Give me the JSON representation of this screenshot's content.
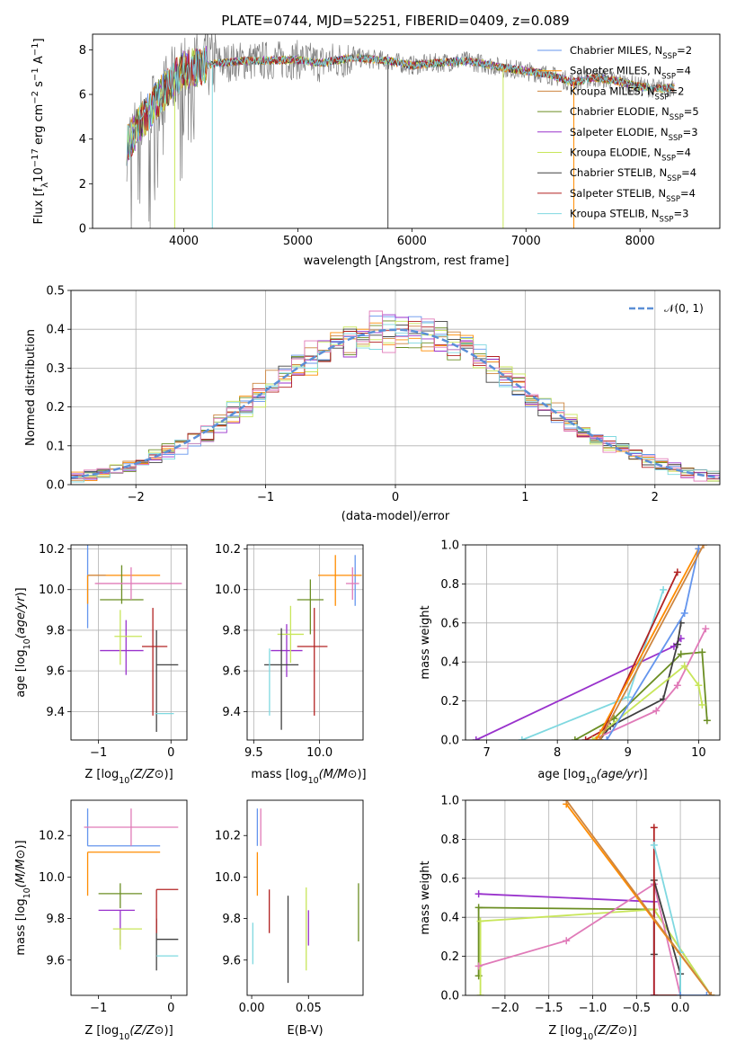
{
  "title": "PLATE=0744, MJD=52251, FIBERID=0409, z=0.089",
  "colors": {
    "chabrier_miles": "#6495ed",
    "salpeter_miles": "#ff8c00",
    "kroupa_miles": "#cd853f",
    "chabrier_elodie": "#6b8e23",
    "salpeter_elodie": "#9932cc",
    "kroupa_elodie": "#c8e65a",
    "chabrier_stelib": "#404040",
    "salpeter_stelib": "#b22222",
    "kroupa_stelib": "#7fd8e0",
    "pink": "#e07ab8",
    "grid": "#b0b0b0",
    "normal": "#5b8fd6"
  },
  "chart_data": [
    {
      "id": "spectrum",
      "type": "line",
      "xlabel": "wavelength [Angstrom, rest frame]",
      "ylabel": "Flux [f$_\\lambda$10$^{-17}$ erg cm$^{-2}$ s$^{-1}$ A$^{-1}$]",
      "xlim": [
        3200,
        8700
      ],
      "ylim": [
        0,
        8.7
      ],
      "xticks": [
        4000,
        5000,
        6000,
        7000,
        8000
      ],
      "yticks": [
        0,
        2,
        4,
        6,
        8
      ],
      "grid": false,
      "legend_position": "right",
      "legend": [
        {
          "base": "Chabrier MILES, N",
          "n": "2",
          "color": "chabrier_miles"
        },
        {
          "base": "Salpeter MILES, N",
          "n": "4",
          "color": "salpeter_miles"
        },
        {
          "base": "Kroupa MILES, N",
          "n": "2",
          "color": "kroupa_miles"
        },
        {
          "base": "Chabrier ELODIE, N",
          "n": "5",
          "color": "chabrier_elodie"
        },
        {
          "base": "Salpeter ELODIE, N",
          "n": "3",
          "color": "salpeter_elodie"
        },
        {
          "base": "Kroupa ELODIE, N",
          "n": "4",
          "color": "kroupa_elodie"
        },
        {
          "base": "Chabrier STELIB, N",
          "n": "4",
          "color": "chabrier_stelib"
        },
        {
          "base": "Salpeter STELIB, N",
          "n": "4",
          "color": "salpeter_stelib"
        },
        {
          "base": "Kroupa STELIB, N",
          "n": "3",
          "color": "kroupa_stelib"
        }
      ],
      "legend_sub": "SSP",
      "continuum": {
        "x": [
          3500,
          3600,
          3700,
          3800,
          3900,
          4000,
          4100,
          4300,
          4500,
          5000,
          5200,
          5500,
          5800,
          6000,
          6300,
          6500,
          6800,
          7000,
          7200,
          7400,
          7600,
          7800,
          8000,
          8200,
          8300
        ],
        "y": [
          3.7,
          4.6,
          5.3,
          6.0,
          6.6,
          7.1,
          7.2,
          7.4,
          7.5,
          7.55,
          7.4,
          7.65,
          7.5,
          7.3,
          7.45,
          7.5,
          7.2,
          7.05,
          6.9,
          6.55,
          6.75,
          6.6,
          6.35,
          6.25,
          6.35
        ]
      },
      "spikes": [
        {
          "x": 3920,
          "y": 0,
          "color": "kroupa_elodie"
        },
        {
          "x": 4250,
          "y": 0,
          "color": "kroupa_stelib"
        },
        {
          "x": 5790,
          "y": 0,
          "color": "chabrier_stelib"
        },
        {
          "x": 6800,
          "y": 0,
          "color": "kroupa_elodie"
        },
        {
          "x": 7420,
          "y": 0,
          "color": "salpeter_miles"
        }
      ]
    },
    {
      "id": "residuals",
      "type": "step",
      "xlabel": "(data-model)/error",
      "ylabel": "Normed distribution",
      "xlim": [
        -2.5,
        2.5
      ],
      "ylim": [
        0,
        0.5
      ],
      "xticks": [
        -2,
        -1,
        0,
        1,
        2
      ],
      "yticks": [
        0.0,
        0.1,
        0.2,
        0.3,
        0.4,
        0.5
      ],
      "grid": true,
      "legend": "𝒩(0, 1)",
      "legend_position": "top-right",
      "bin_width": 0.1
    },
    {
      "id": "age_vs_Z",
      "type": "errorbar",
      "xlabel": "Z [log",
      "ylabel": "age  [log",
      "xlim": [
        -1.38,
        0.22
      ],
      "ylim": [
        9.26,
        10.22
      ],
      "xticks": [
        -1,
        0
      ],
      "yticks": [
        9.4,
        9.6,
        9.8,
        10.0,
        10.2
      ],
      "grid": true,
      "points": [
        {
          "x": -1.15,
          "y": 10.07,
          "xe": [
            0.0,
            0.0
          ],
          "ye": [
            0.26,
            0.26
          ],
          "c": "chabrier_miles"
        },
        {
          "x": -1.15,
          "y": 10.07,
          "xe": [
            0.0,
            1.0
          ],
          "ye": [
            0.14,
            0.0
          ],
          "c": "salpeter_miles"
        },
        {
          "x": -0.9,
          "y": 10.07,
          "xe": [
            0.24,
            0.0
          ],
          "ye": [
            0.0,
            0.0
          ],
          "c": "kroupa_miles"
        },
        {
          "x": -0.68,
          "y": 9.95,
          "xe": [
            0.3,
            0.3
          ],
          "ye": [
            0.02,
            0.17
          ],
          "c": "chabrier_elodie"
        },
        {
          "x": -0.62,
          "y": 9.7,
          "xe": [
            0.36,
            0.24
          ],
          "ye": [
            0.12,
            0.15
          ],
          "c": "salpeter_elodie"
        },
        {
          "x": -0.7,
          "y": 9.77,
          "xe": [
            0.08,
            0.3
          ],
          "ye": [
            0.14,
            0.13
          ],
          "c": "kroupa_elodie"
        },
        {
          "x": -0.2,
          "y": 9.63,
          "xe": [
            0.0,
            0.3
          ],
          "ye": [
            0.33,
            0.17
          ],
          "c": "chabrier_stelib"
        },
        {
          "x": -0.25,
          "y": 9.72,
          "xe": [
            0.15,
            0.2
          ],
          "ye": [
            0.34,
            0.19
          ],
          "c": "salpeter_stelib"
        },
        {
          "x": -0.1,
          "y": 9.39,
          "xe": [
            0.12,
            0.14
          ],
          "ye": [
            0.0,
            0.0
          ],
          "c": "kroupa_stelib"
        },
        {
          "x": -0.55,
          "y": 10.03,
          "xe": [
            0.0,
            0.0
          ],
          "ye": [
            0.08,
            0.08
          ],
          "c": "pink"
        },
        {
          "x": -0.25,
          "y": 10.03,
          "xe": [
            0.8,
            0.4
          ],
          "ye": [
            0.0,
            0.0
          ],
          "c": "pink"
        }
      ]
    },
    {
      "id": "age_vs_mass",
      "type": "errorbar",
      "xlabel": "mass [log",
      "ylabel": "",
      "xlim": [
        9.45,
        10.33
      ],
      "ylim": [
        9.26,
        10.22
      ],
      "xticks": [
        9.5,
        10.0
      ],
      "yticks": [
        9.4,
        9.6,
        9.8,
        10.0,
        10.2
      ],
      "grid": true,
      "points": [
        {
          "x": 10.27,
          "y": 10.07,
          "xe": [
            0.0,
            0.0
          ],
          "ye": [
            0.15,
            0.1
          ],
          "c": "chabrier_miles"
        },
        {
          "x": 10.12,
          "y": 10.07,
          "xe": [
            0.13,
            0.2
          ],
          "ye": [
            0.15,
            0.1
          ],
          "c": "salpeter_miles"
        },
        {
          "x": 9.93,
          "y": 9.95,
          "xe": [
            0.1,
            0.1
          ],
          "ye": [
            0.17,
            0.1
          ],
          "c": "chabrier_elodie"
        },
        {
          "x": 9.75,
          "y": 9.7,
          "xe": [
            0.12,
            0.12
          ],
          "ye": [
            0.13,
            0.13
          ],
          "c": "salpeter_elodie"
        },
        {
          "x": 9.78,
          "y": 9.78,
          "xe": [
            0.1,
            0.1
          ],
          "ye": [
            0.14,
            0.14
          ],
          "c": "kroupa_elodie"
        },
        {
          "x": 9.71,
          "y": 9.63,
          "xe": [
            0.13,
            0.13
          ],
          "ye": [
            0.32,
            0.18
          ],
          "c": "chabrier_stelib"
        },
        {
          "x": 9.96,
          "y": 9.72,
          "xe": [
            0.13,
            0.1
          ],
          "ye": [
            0.34,
            0.19
          ],
          "c": "salpeter_stelib"
        },
        {
          "x": 9.62,
          "y": 9.38,
          "xe": [
            0.0,
            0.0
          ],
          "ye": [
            0.0,
            0.33
          ],
          "c": "kroupa_stelib"
        },
        {
          "x": 10.25,
          "y": 10.03,
          "xe": [
            0.05,
            0.05
          ],
          "ye": [
            0.08,
            0.08
          ],
          "c": "pink"
        }
      ]
    },
    {
      "id": "massweight_vs_age",
      "type": "line",
      "xlabel": "age  [log",
      "ylabel": "mass weight",
      "xlim": [
        6.7,
        10.3
      ],
      "ylim": [
        0,
        1.0
      ],
      "xticks": [
        7,
        8,
        9,
        10
      ],
      "yticks": [
        0.0,
        0.2,
        0.4,
        0.6,
        0.8,
        1.0
      ],
      "grid": true,
      "series": [
        {
          "c": "salpeter_elodie",
          "x": [
            6.85,
            9.65,
            9.75
          ],
          "y": [
            0.0,
            0.48,
            0.52
          ]
        },
        {
          "c": "kroupa_stelib",
          "x": [
            7.5,
            9.0,
            9.5
          ],
          "y": [
            0.0,
            0.22,
            0.77
          ]
        },
        {
          "c": "chabrier_elodie",
          "x": [
            8.25,
            8.8,
            9.75,
            10.05,
            10.12
          ],
          "y": [
            0.0,
            0.11,
            0.44,
            0.45,
            0.1
          ]
        },
        {
          "c": "chabrier_stelib",
          "x": [
            8.6,
            8.75,
            9.5,
            9.7,
            9.75
          ],
          "y": [
            0.0,
            0.07,
            0.21,
            0.49,
            0.6
          ]
        },
        {
          "c": "salpeter_stelib",
          "x": [
            8.4,
            8.65,
            9.7
          ],
          "y": [
            0.0,
            0.05,
            0.86
          ]
        },
        {
          "c": "pink",
          "x": [
            8.5,
            9.4,
            9.7,
            10.1
          ],
          "y": [
            0.0,
            0.15,
            0.28,
            0.57
          ]
        },
        {
          "c": "kroupa_elodie",
          "x": [
            8.5,
            9.8,
            10.0,
            10.05
          ],
          "y": [
            0.0,
            0.38,
            0.28,
            0.18
          ]
        },
        {
          "c": "salpeter_miles",
          "x": [
            8.55,
            10.0
          ],
          "y": [
            0.0,
            0.98
          ]
        },
        {
          "c": "chabrier_miles",
          "x": [
            8.7,
            9.8,
            10.0
          ],
          "y": [
            0.0,
            0.65,
            0.98
          ]
        },
        {
          "c": "kroupa_miles",
          "x": [
            8.6,
            10.07
          ],
          "y": [
            0.0,
            1.0
          ]
        }
      ]
    },
    {
      "id": "mass_vs_Z",
      "type": "errorbar",
      "xlabel": "Z [log",
      "ylabel": "mass [log",
      "xlim": [
        -1.38,
        0.22
      ],
      "ylim": [
        9.43,
        10.37
      ],
      "xticks": [
        -1,
        0
      ],
      "yticks": [
        9.6,
        9.8,
        10.0,
        10.2
      ],
      "grid": false,
      "points": [
        {
          "x": -1.15,
          "y": 10.15,
          "xe": [
            0.0,
            1.0
          ],
          "ye": [
            0.0,
            0.18
          ],
          "c": "chabrier_miles"
        },
        {
          "x": -1.15,
          "y": 10.12,
          "xe": [
            0.0,
            1.0
          ],
          "ye": [
            0.21,
            0.0
          ],
          "c": "salpeter_miles"
        },
        {
          "x": -0.7,
          "y": 9.92,
          "xe": [
            0.3,
            0.3
          ],
          "ye": [
            0.07,
            0.05
          ],
          "c": "chabrier_elodie"
        },
        {
          "x": -0.7,
          "y": 9.84,
          "xe": [
            0.3,
            0.2
          ],
          "ye": [
            0.17,
            0.0
          ],
          "c": "salpeter_elodie"
        },
        {
          "x": -0.7,
          "y": 9.75,
          "xe": [
            0.1,
            0.3
          ],
          "ye": [
            0.1,
            0.0
          ],
          "c": "kroupa_elodie"
        },
        {
          "x": -0.2,
          "y": 9.7,
          "xe": [
            0.0,
            0.3
          ],
          "ye": [
            0.15,
            0.1
          ],
          "c": "chabrier_stelib"
        },
        {
          "x": -0.2,
          "y": 9.94,
          "xe": [
            0.0,
            0.3
          ],
          "ye": [
            0.21,
            0.0
          ],
          "c": "salpeter_stelib"
        },
        {
          "x": -0.1,
          "y": 9.62,
          "xe": [
            0.1,
            0.2
          ],
          "ye": [
            0.0,
            0.0
          ],
          "c": "kroupa_stelib"
        },
        {
          "x": -0.55,
          "y": 10.24,
          "xe": [
            0.65,
            0.65
          ],
          "ye": [
            0.09,
            0.09
          ],
          "c": "pink"
        }
      ]
    },
    {
      "id": "mass_vs_EBV",
      "type": "errorbar",
      "xlabel": "E(B-V)",
      "ylabel": "",
      "xlim": [
        -0.004,
        0.098
      ],
      "ylim": [
        9.43,
        10.37
      ],
      "xticks": [
        0.0,
        0.05
      ],
      "yticks": [
        9.6,
        9.8,
        10.0,
        10.2
      ],
      "grid": false,
      "points": [
        {
          "x": 0.005,
          "y": 10.15,
          "xe": [
            0,
            0
          ],
          "ye": [
            0.0,
            0.18
          ],
          "c": "chabrier_miles"
        },
        {
          "x": 0.005,
          "y": 10.12,
          "xe": [
            0,
            0
          ],
          "ye": [
            0.21,
            0.0
          ],
          "c": "salpeter_miles"
        },
        {
          "x": 0.008,
          "y": 10.24,
          "xe": [
            0,
            0
          ],
          "ye": [
            0.09,
            0.09
          ],
          "c": "pink"
        },
        {
          "x": 0.0155,
          "y": 9.94,
          "xe": [
            0,
            0
          ],
          "ye": [
            0.21,
            0.0
          ],
          "c": "salpeter_stelib"
        },
        {
          "x": 0.032,
          "y": 9.7,
          "xe": [
            0,
            0
          ],
          "ye": [
            0.21,
            0.21
          ],
          "c": "chabrier_stelib"
        },
        {
          "x": 0.048,
          "y": 9.75,
          "xe": [
            0,
            0
          ],
          "ye": [
            0.2,
            0.2
          ],
          "c": "kroupa_elodie"
        },
        {
          "x": 0.05,
          "y": 9.84,
          "xe": [
            0,
            0
          ],
          "ye": [
            0.17,
            0.0
          ],
          "c": "salpeter_elodie"
        },
        {
          "x": 0.094,
          "y": 9.83,
          "xe": [
            0,
            0
          ],
          "ye": [
            0.14,
            0.14
          ],
          "c": "chabrier_elodie"
        },
        {
          "x": 0.001,
          "y": 9.68,
          "xe": [
            0,
            0
          ],
          "ye": [
            0.1,
            0.1
          ],
          "c": "kroupa_stelib"
        }
      ]
    },
    {
      "id": "massweight_vs_Z",
      "type": "line",
      "xlabel": "Z [log",
      "ylabel": "mass weight",
      "xlim": [
        -2.45,
        0.45
      ],
      "ylim": [
        0,
        1.0
      ],
      "xticks": [
        -2.0,
        -1.5,
        -1.0,
        -0.5,
        0.0
      ],
      "yticks": [
        0.0,
        0.2,
        0.4,
        0.6,
        0.8,
        1.0
      ],
      "grid": true,
      "series": [
        {
          "c": "salpeter_elodie",
          "x": [
            -2.3,
            -0.3,
            -0.3
          ],
          "y": [
            0.52,
            0.48,
            0.0
          ]
        },
        {
          "c": "chabrier_elodie",
          "x": [
            -2.3,
            -2.3,
            -0.3,
            0.35,
            0.35
          ],
          "y": [
            0.1,
            0.45,
            0.44,
            0.0,
            0.0
          ]
        },
        {
          "c": "kroupa_elodie",
          "x": [
            -2.28,
            -2.28,
            -0.3,
            0.35
          ],
          "y": [
            0.0,
            0.38,
            0.44,
            0.0
          ]
        },
        {
          "c": "pink",
          "x": [
            -2.3,
            -1.3,
            -0.3,
            0.0
          ],
          "y": [
            0.15,
            0.28,
            0.57,
            0.0
          ]
        },
        {
          "c": "chabrier_stelib",
          "x": [
            -0.3,
            -0.3,
            0.0,
            0.0
          ],
          "y": [
            0.21,
            0.59,
            0.11,
            0.0
          ]
        },
        {
          "c": "salpeter_stelib",
          "x": [
            -0.3,
            -0.3,
            0.0
          ],
          "y": [
            0.86,
            0.0,
            0.0
          ]
        },
        {
          "c": "kroupa_stelib",
          "x": [
            -0.3,
            0.0,
            0.0
          ],
          "y": [
            0.77,
            0.22,
            0.0
          ]
        },
        {
          "c": "salpeter_miles",
          "x": [
            -1.3,
            0.35
          ],
          "y": [
            0.98,
            0.0
          ]
        },
        {
          "c": "kroupa_miles",
          "x": [
            -1.3,
            0.35
          ],
          "y": [
            1.0,
            0.0
          ]
        },
        {
          "c": "chabrier_miles",
          "x": [
            0.0,
            0.3
          ],
          "y": [
            0.0,
            0.0
          ]
        }
      ]
    }
  ]
}
